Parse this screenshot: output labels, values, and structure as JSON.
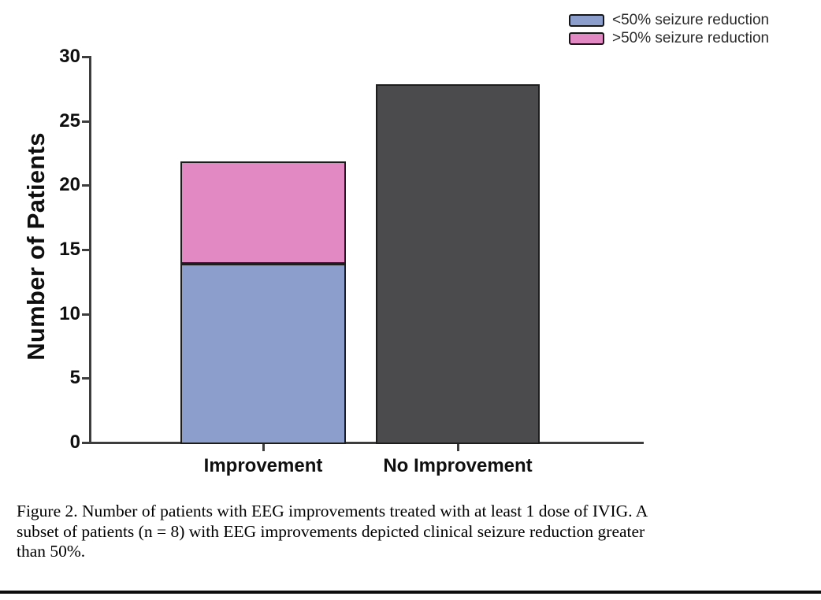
{
  "figure": {
    "caption_lines": [
      "Figure 2. Number of patients with EEG improvements treated with at least 1 dose of IVIG. A",
      "subset of patients (n = 8) with EEG improvements depicted clinical seizure reduction greater",
      "than 50%."
    ]
  },
  "chart_data": {
    "type": "bar",
    "stacked": true,
    "title": "",
    "xlabel": "",
    "ylabel": "Number of Patients",
    "ylim": [
      0,
      30
    ],
    "yticks": [
      0,
      5,
      10,
      15,
      20,
      25,
      30
    ],
    "grid": false,
    "categories": [
      "Improvement",
      "No Improvement"
    ],
    "bars": [
      {
        "category": "Improvement",
        "total": 22,
        "segments": [
          {
            "label": "<50% seizure reduction",
            "value": 14,
            "color": "#8C9FCC"
          },
          {
            "label": ">50% seizure reduction",
            "value": 8,
            "color": "#E289C4"
          }
        ]
      },
      {
        "category": "No Improvement",
        "total": 28,
        "segments": [
          {
            "value": 28,
            "color": "#4B4B4D"
          }
        ]
      }
    ],
    "legend": {
      "position": "top-right",
      "entries": [
        {
          "label": "<50% seizure reduction",
          "color": "#8C9FCC"
        },
        {
          "label": ">50% seizure reduction",
          "color": "#E289C4"
        }
      ]
    }
  }
}
